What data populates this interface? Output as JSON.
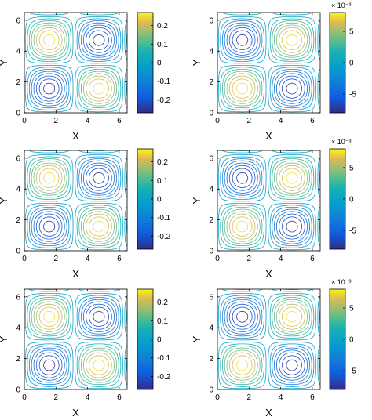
{
  "chart_data": [
    {
      "type": "contour",
      "xlabel": "X",
      "ylabel": "Y",
      "xlim": [
        0,
        6.5
      ],
      "ylim": [
        0,
        6.5
      ],
      "xticks": [
        "0",
        "2",
        "4",
        "6"
      ],
      "yticks": [
        "0",
        "2",
        "4",
        "6"
      ],
      "field": "a*sin(x)*sin(y)",
      "amplitude": -0.27,
      "colorbar": {
        "min": -0.27,
        "max": 0.27,
        "ticks": [
          "0.2",
          "0.1",
          "0",
          "-0.1",
          "-0.2"
        ],
        "tick_values": [
          0.2,
          0.1,
          0,
          -0.1,
          -0.2
        ],
        "exponent_label": ""
      }
    },
    {
      "type": "contour",
      "xlabel": "X",
      "ylabel": "Y",
      "xlim": [
        0,
        6.5
      ],
      "ylim": [
        0,
        6.5
      ],
      "xticks": [
        "0",
        "2",
        "4",
        "6"
      ],
      "yticks": [
        "0",
        "2",
        "4",
        "6"
      ],
      "field": "a*sin(x)*sin(y)",
      "amplitude": 0.008,
      "colorbar": {
        "min": -0.008,
        "max": 0.008,
        "ticks": [
          "5",
          "0",
          "-5"
        ],
        "tick_values": [
          0.005,
          0,
          -0.005
        ],
        "exponent_label": "× 10⁻³"
      }
    },
    {
      "type": "contour",
      "xlabel": "X",
      "ylabel": "Y",
      "xlim": [
        0,
        6.5
      ],
      "ylim": [
        0,
        6.5
      ],
      "xticks": [
        "0",
        "2",
        "4",
        "6"
      ],
      "yticks": [
        "0",
        "2",
        "4",
        "6"
      ],
      "field": "a*sin(x)*sin(y)",
      "amplitude": -0.27,
      "colorbar": {
        "min": -0.27,
        "max": 0.27,
        "ticks": [
          "0.2",
          "0.1",
          "0",
          "-0.1",
          "-0.2"
        ],
        "tick_values": [
          0.2,
          0.1,
          0,
          -0.1,
          -0.2
        ],
        "exponent_label": ""
      }
    },
    {
      "type": "contour",
      "xlabel": "X",
      "ylabel": "Y",
      "xlim": [
        0,
        6.5
      ],
      "ylim": [
        0,
        6.5
      ],
      "xticks": [
        "0",
        "2",
        "4",
        "6"
      ],
      "yticks": [
        "0",
        "2",
        "4",
        "6"
      ],
      "field": "a*sin(x)*sin(y)",
      "amplitude": 0.008,
      "colorbar": {
        "min": -0.008,
        "max": 0.008,
        "ticks": [
          "5",
          "0",
          "-5"
        ],
        "tick_values": [
          0.005,
          0,
          -0.005
        ],
        "exponent_label": "× 10⁻³"
      }
    },
    {
      "type": "contour",
      "xlabel": "X",
      "ylabel": "Y",
      "xlim": [
        0,
        6.5
      ],
      "ylim": [
        0,
        6.5
      ],
      "xticks": [
        "0",
        "2",
        "4",
        "6"
      ],
      "yticks": [
        "0",
        "2",
        "4",
        "6"
      ],
      "field": "a*sin(x)*sin(y)",
      "amplitude": -0.27,
      "colorbar": {
        "min": -0.27,
        "max": 0.27,
        "ticks": [
          "0.2",
          "0.1",
          "0",
          "-0.1",
          "-0.2"
        ],
        "tick_values": [
          0.2,
          0.1,
          0,
          -0.1,
          -0.2
        ],
        "exponent_label": ""
      }
    },
    {
      "type": "contour",
      "xlabel": "X",
      "ylabel": "Y",
      "xlim": [
        0,
        6.5
      ],
      "ylim": [
        0,
        6.5
      ],
      "xticks": [
        "0",
        "2",
        "4",
        "6"
      ],
      "yticks": [
        "0",
        "2",
        "4",
        "6"
      ],
      "field": "a*sin(x)*sin(y)",
      "amplitude": 0.008,
      "colorbar": {
        "min": -0.008,
        "max": 0.008,
        "ticks": [
          "5",
          "0",
          "-5"
        ],
        "tick_values": [
          0.005,
          0,
          -0.005
        ],
        "exponent_label": "× 10⁻³"
      }
    }
  ]
}
